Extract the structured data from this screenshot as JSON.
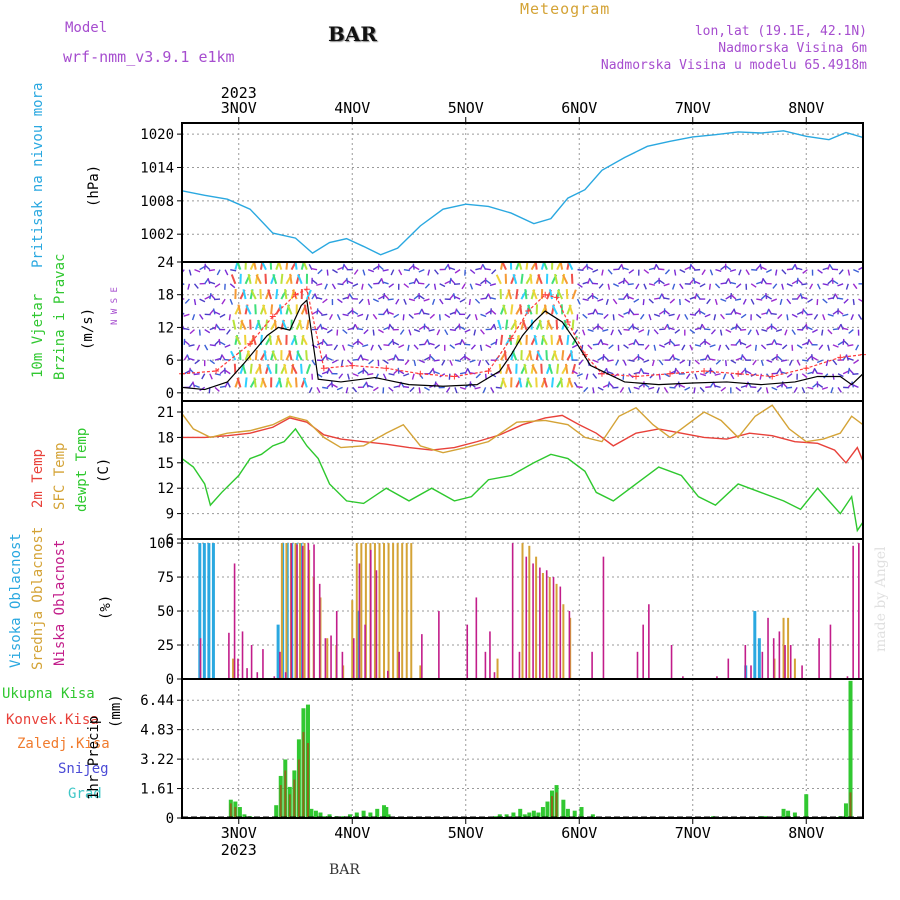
{
  "header": {
    "model_label": "Model",
    "model_name": "wrf-nmm_v3.9.1 e1km",
    "station": "BAR",
    "meteogram": "Meteogram",
    "lonlat": "lon,lat (19.1E, 42.1N)",
    "elevation": "Nadmorska Visina 6m",
    "model_elevation": "Nadmorska Visina u modelu 65.4918m",
    "footer_station": "BAR",
    "watermark": "made by Angel"
  },
  "colors": {
    "pressure": "#2aa8e0",
    "temp2m": "#e8413a",
    "sfc": "#d4a336",
    "dewpt": "#2ec82e",
    "high_cloud": "#2aa8e0",
    "mid_cloud": "#d4a336",
    "low_cloud": "#c21d8a",
    "precip": "#31c831",
    "conv": "#e8413a",
    "purple": "#a64dcf"
  },
  "chart_data": {
    "type": "meteogram",
    "x_top_year": "2023",
    "x_bottom_year": "2023",
    "x_ticks": [
      "3NOV",
      "4NOV",
      "5NOV",
      "6NOV",
      "7NOV",
      "8NOV"
    ],
    "x_range": [
      -0.5,
      5.5
    ],
    "panels": [
      {
        "id": "pressure",
        "label": "Pritisak na nivou mora",
        "unit": "(hPa)",
        "yticks": [
          "1002",
          "1008",
          "1014",
          "1020"
        ],
        "ylim": [
          997,
          1022
        ],
        "series": [
          {
            "name": "Pritisak na nivou mora",
            "x": [
              -0.5,
              -0.3,
              -0.1,
              0.1,
              0.3,
              0.5,
              0.6,
              0.65,
              0.8,
              0.95,
              1.1,
              1.25,
              1.4,
              1.6,
              1.8,
              2.0,
              2.2,
              2.4,
              2.6,
              2.75,
              2.9,
              3.05,
              3.2,
              3.4,
              3.6,
              3.8,
              4.0,
              4.2,
              4.4,
              4.6,
              4.8,
              5.0,
              5.2,
              5.35,
              5.5
            ],
            "values": [
              1009.8,
              1009.0,
              1008.3,
              1006.5,
              1002.2,
              1001.3,
              999.5,
              998.6,
              1000.5,
              1001.2,
              999.8,
              998.3,
              999.5,
              1003.5,
              1006.5,
              1007.4,
              1007.0,
              1005.8,
              1003.9,
              1004.8,
              1008.5,
              1010.0,
              1013.5,
              1015.8,
              1017.8,
              1018.7,
              1019.5,
              1019.9,
              1020.4,
              1020.2,
              1020.6,
              1019.6,
              1019.0,
              1020.3,
              1019.4
            ]
          }
        ]
      },
      {
        "id": "wind",
        "label1": "10m Vjetar",
        "label2": "Brzina i Pravac",
        "unit": "(m/s)",
        "compass": "N W S E",
        "yticks": [
          "0",
          "6",
          "12",
          "18",
          "24"
        ],
        "ylim": [
          -1.5,
          24
        ],
        "series": [
          {
            "name": "10m Vjetar",
            "x": [
              -0.5,
              -0.3,
              -0.1,
              0.05,
              0.15,
              0.25,
              0.35,
              0.45,
              0.55,
              0.6,
              0.7,
              0.9,
              1.2,
              1.5,
              1.8,
              2.1,
              2.3,
              2.4,
              2.5,
              2.6,
              2.7,
              2.85,
              2.95,
              3.1,
              3.4,
              3.7,
              4.0,
              4.3,
              4.6,
              4.9,
              5.1,
              5.3,
              5.4,
              5.5
            ],
            "values": [
              1.0,
              0.6,
              2.0,
              5.5,
              8.0,
              10.5,
              12.0,
              11.5,
              16.0,
              17.0,
              2.5,
              2.0,
              2.8,
              1.5,
              1.2,
              1.5,
              4.0,
              7.0,
              10.5,
              13.0,
              15.0,
              13.0,
              10.0,
              5.0,
              2.0,
              1.5,
              1.8,
              2.0,
              1.5,
              2.0,
              3.0,
              3.0,
              1.5,
              3.5
            ]
          }
        ],
        "gusts": {
          "x": [
            -0.5,
            -0.2,
            0.1,
            0.3,
            0.5,
            0.6,
            0.75,
            1.0,
            1.3,
            1.6,
            1.9,
            2.2,
            2.4,
            2.55,
            2.7,
            2.8,
            2.9,
            3.05,
            3.2,
            3.5,
            3.8,
            4.1,
            4.4,
            4.7,
            5.0,
            5.3,
            5.5
          ],
          "values": [
            3.5,
            4.0,
            9.0,
            14.0,
            18.0,
            19.0,
            4.5,
            5.0,
            4.5,
            3.5,
            3.0,
            4.0,
            10.0,
            15.0,
            18.0,
            17.5,
            13.0,
            7.0,
            3.5,
            3.0,
            3.5,
            4.0,
            3.5,
            3.0,
            4.5,
            6.5,
            7.0
          ]
        }
      },
      {
        "id": "temp",
        "label1": "2m Temp",
        "label2": "SFC Temp",
        "label3": "dewpt Temp",
        "unit": "(C)",
        "yticks": [
          "6",
          "9",
          "12",
          "15",
          "18",
          "21"
        ],
        "ylim": [
          6,
          22.3
        ],
        "series": [
          {
            "name": "2m Temp",
            "x": [
              -0.5,
              -0.3,
              -0.1,
              0.1,
              0.3,
              0.45,
              0.6,
              0.75,
              0.9,
              1.1,
              1.3,
              1.5,
              1.7,
              1.9,
              2.1,
              2.3,
              2.5,
              2.7,
              2.85,
              3.0,
              3.15,
              3.3,
              3.5,
              3.7,
              3.9,
              4.1,
              4.3,
              4.5,
              4.7,
              4.9,
              5.1,
              5.25,
              5.35,
              5.45,
              5.5
            ],
            "values": [
              18.0,
              18.0,
              18.2,
              18.5,
              19.2,
              20.3,
              19.8,
              18.3,
              17.8,
              17.5,
              17.2,
              16.8,
              16.5,
              16.8,
              17.5,
              18.3,
              19.5,
              20.3,
              20.6,
              19.5,
              18.5,
              17.0,
              18.5,
              19.0,
              18.5,
              18.0,
              17.8,
              18.5,
              18.2,
              17.5,
              17.3,
              16.5,
              15.0,
              16.8,
              15.2
            ]
          },
          {
            "name": "SFC Temp",
            "x": [
              -0.5,
              -0.4,
              -0.25,
              -0.1,
              0.1,
              0.3,
              0.45,
              0.6,
              0.75,
              0.9,
              1.1,
              1.3,
              1.45,
              1.6,
              1.8,
              2.0,
              2.2,
              2.45,
              2.7,
              2.9,
              3.05,
              3.2,
              3.35,
              3.5,
              3.65,
              3.8,
              3.95,
              4.1,
              4.25,
              4.4,
              4.55,
              4.7,
              4.85,
              5.0,
              5.15,
              5.3,
              5.4,
              5.5
            ],
            "values": [
              20.8,
              19.0,
              18.0,
              18.5,
              18.8,
              19.5,
              20.5,
              20.0,
              18.0,
              16.8,
              17.0,
              18.5,
              19.5,
              17.0,
              16.2,
              16.8,
              17.5,
              19.8,
              20.0,
              19.5,
              18.0,
              17.5,
              20.5,
              21.5,
              19.5,
              18.0,
              19.5,
              21.0,
              20.0,
              18.0,
              20.5,
              21.8,
              19.0,
              17.5,
              17.8,
              18.5,
              20.5,
              19.5
            ]
          },
          {
            "name": "dewpt Temp",
            "x": [
              -0.5,
              -0.4,
              -0.3,
              -0.25,
              -0.15,
              0.0,
              0.1,
              0.2,
              0.3,
              0.4,
              0.5,
              0.6,
              0.7,
              0.8,
              0.95,
              1.1,
              1.3,
              1.5,
              1.7,
              1.9,
              2.05,
              2.2,
              2.4,
              2.6,
              2.75,
              2.9,
              3.05,
              3.15,
              3.3,
              3.5,
              3.7,
              3.9,
              4.05,
              4.2,
              4.4,
              4.6,
              4.8,
              4.95,
              5.1,
              5.2,
              5.3,
              5.4,
              5.45,
              5.5
            ],
            "values": [
              15.5,
              14.5,
              12.5,
              10.0,
              11.5,
              13.5,
              15.5,
              16.0,
              17.0,
              17.5,
              19.0,
              17.0,
              15.5,
              12.5,
              10.5,
              10.2,
              12.0,
              10.5,
              12.0,
              10.5,
              11.0,
              13.0,
              13.5,
              15.0,
              16.0,
              15.5,
              14.0,
              11.5,
              10.5,
              12.5,
              14.5,
              13.5,
              11.0,
              10.0,
              12.5,
              11.5,
              10.5,
              9.5,
              12.0,
              10.5,
              9.0,
              11.0,
              7.0,
              8.0
            ]
          }
        ]
      },
      {
        "id": "cloud",
        "label1": "Visoka Oblacnost",
        "label2": "Srednja Oblacnost",
        "label3": "Niska Oblacnost",
        "unit": "(%)",
        "yticks": [
          "0",
          "25",
          "50",
          "75",
          "100"
        ],
        "ylim": [
          0,
          103
        ],
        "series": [
          {
            "name": "Visoka Oblacnost",
            "x": [
              -0.33,
              -0.29,
              -0.25,
              -0.21,
              0.36,
              0.4,
              0.44,
              0.48,
              0.52,
              0.56,
              1.06,
              4.48,
              4.56,
              4.6
            ],
            "values": [
              100,
              100,
              100,
              100,
              40,
              100,
              100,
              100,
              100,
              100,
              50,
              10,
              50,
              30
            ]
          },
          {
            "name": "Srednja Oblacnost",
            "x": [
              -0.05,
              0.38,
              0.42,
              0.46,
              0.5,
              0.54,
              0.58,
              0.62,
              0.66,
              0.72,
              0.78,
              0.86,
              0.92,
              1.0,
              1.04,
              1.08,
              1.12,
              1.16,
              1.2,
              1.24,
              1.28,
              1.32,
              1.36,
              1.4,
              1.44,
              1.48,
              1.52,
              1.6,
              2.28,
              2.5,
              2.56,
              2.62,
              2.68,
              2.74,
              2.8,
              2.86,
              2.92,
              4.72,
              4.8,
              4.84,
              4.9
            ],
            "values": [
              15,
              100,
              100,
              100,
              100,
              100,
              100,
              95,
              75,
              60,
              30,
              25,
              10,
              58,
              100,
              100,
              100,
              100,
              100,
              100,
              100,
              100,
              100,
              100,
              100,
              100,
              100,
              10,
              15,
              100,
              98,
              90,
              78,
              75,
              70,
              55,
              45,
              15,
              45,
              45,
              15
            ]
          },
          {
            "name": "Niska Oblacnost",
            "x": [
              -0.35,
              -0.1,
              -0.05,
              -0.02,
              0.02,
              0.06,
              0.1,
              0.15,
              0.2,
              0.3,
              0.35,
              0.4,
              0.45,
              0.5,
              0.55,
              0.6,
              0.65,
              0.7,
              0.75,
              0.8,
              0.85,
              0.9,
              1.0,
              1.05,
              1.1,
              1.15,
              1.2,
              1.3,
              1.4,
              1.6,
              1.75,
              2.0,
              2.08,
              2.16,
              2.2,
              2.24,
              2.4,
              2.46,
              2.52,
              2.58,
              2.64,
              2.7,
              2.76,
              2.82,
              2.9,
              3.1,
              3.2,
              3.5,
              3.55,
              3.6,
              3.8,
              3.9,
              4.2,
              4.3,
              4.45,
              4.5,
              4.6,
              4.65,
              4.7,
              4.75,
              4.8,
              4.85,
              4.95,
              5.1,
              5.2,
              5.35,
              5.4,
              5.45
            ],
            "values": [
              30,
              34,
              85,
              15,
              35,
              8,
              25,
              5,
              22,
              2,
              20,
              5,
              100,
              99,
              98,
              100,
              99,
              70,
              30,
              32,
              50,
              20,
              30,
              85,
              40,
              95,
              80,
              6,
              20,
              33,
              50,
              40,
              60,
              20,
              35,
              5,
              100,
              20,
              90,
              85,
              82,
              80,
              75,
              68,
              50,
              20,
              90,
              20,
              40,
              55,
              25,
              2,
              2,
              15,
              25,
              10,
              20,
              45,
              30,
              35,
              25,
              25,
              10,
              30,
              40,
              2,
              98,
              100
            ]
          }
        ]
      },
      {
        "id": "precip",
        "label": "1hr Precip",
        "unit": "(mm)",
        "legend": [
          "Ukupna Kisa",
          "Konvek.Kisa",
          "Zaledj.Kisa",
          "Snijeg",
          "Grad"
        ],
        "yticks": [
          "0",
          "1.61",
          "3.22",
          "4.83",
          "6.44"
        ],
        "ylim": [
          0,
          7.6
        ],
        "series": [
          {
            "name": "Ukupna Kisa",
            "x": [
              -0.07,
              -0.03,
              0.01,
              0.05,
              0.1,
              0.33,
              0.37,
              0.41,
              0.45,
              0.49,
              0.53,
              0.57,
              0.61,
              0.64,
              0.68,
              0.72,
              0.76,
              0.8,
              0.86,
              0.92,
              0.98,
              1.04,
              1.1,
              1.16,
              1.22,
              1.28,
              1.3,
              1.32,
              2.26,
              2.3,
              2.36,
              2.42,
              2.48,
              2.52,
              2.56,
              2.6,
              2.64,
              2.68,
              2.72,
              2.76,
              2.8,
              2.86,
              2.9,
              2.96,
              3.02,
              3.12,
              4.18,
              4.6,
              4.64,
              4.8,
              4.84,
              4.9,
              5.0,
              5.3,
              5.35,
              5.39
            ],
            "values": [
              1.0,
              0.9,
              0.6,
              0.2,
              0.1,
              0.7,
              2.3,
              3.2,
              1.7,
              2.6,
              4.3,
              6.0,
              6.2,
              0.5,
              0.4,
              0.3,
              0.1,
              0.2,
              0.1,
              0.1,
              0.2,
              0.3,
              0.4,
              0.3,
              0.5,
              0.7,
              0.6,
              0.2,
              0.1,
              0.2,
              0.2,
              0.3,
              0.5,
              0.2,
              0.3,
              0.4,
              0.3,
              0.6,
              0.9,
              1.5,
              1.8,
              1.0,
              0.5,
              0.4,
              0.6,
              0.2,
              0.1,
              0.1,
              0.1,
              0.5,
              0.4,
              0.3,
              1.3,
              0.1,
              0.8,
              7.5
            ]
          },
          {
            "name": "Konvek.Kisa",
            "x": [
              -0.07,
              -0.03,
              0.37,
              0.41,
              0.45,
              0.49,
              0.53,
              0.57,
              0.61,
              2.76,
              2.8,
              5.39
            ],
            "values": [
              0.8,
              0.6,
              1.8,
              2.6,
              1.3,
              2.1,
              3.2,
              4.7,
              4.1,
              1.2,
              1.4,
              1.4
            ]
          }
        ]
      }
    ]
  }
}
